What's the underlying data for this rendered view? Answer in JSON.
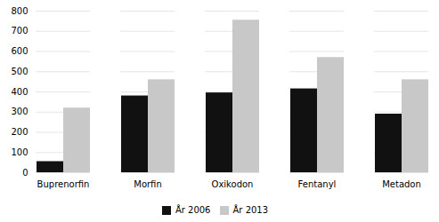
{
  "chart_data": {
    "type": "bar",
    "categories": [
      "Buprenorfin",
      "Morfin",
      "Oxikodon",
      "Fentanyl",
      "Metadon"
    ],
    "series": [
      {
        "name": "År 2006",
        "color": "#111111",
        "values": [
          55,
          380,
          395,
          415,
          290
        ]
      },
      {
        "name": "År 2013",
        "color": "#c8c8c8",
        "values": [
          320,
          460,
          755,
          570,
          460
        ]
      }
    ],
    "ylim": [
      0,
      800
    ],
    "yticks": [
      0,
      100,
      200,
      300,
      400,
      500,
      600,
      700,
      800
    ],
    "grid": true,
    "legend": "bottom"
  }
}
